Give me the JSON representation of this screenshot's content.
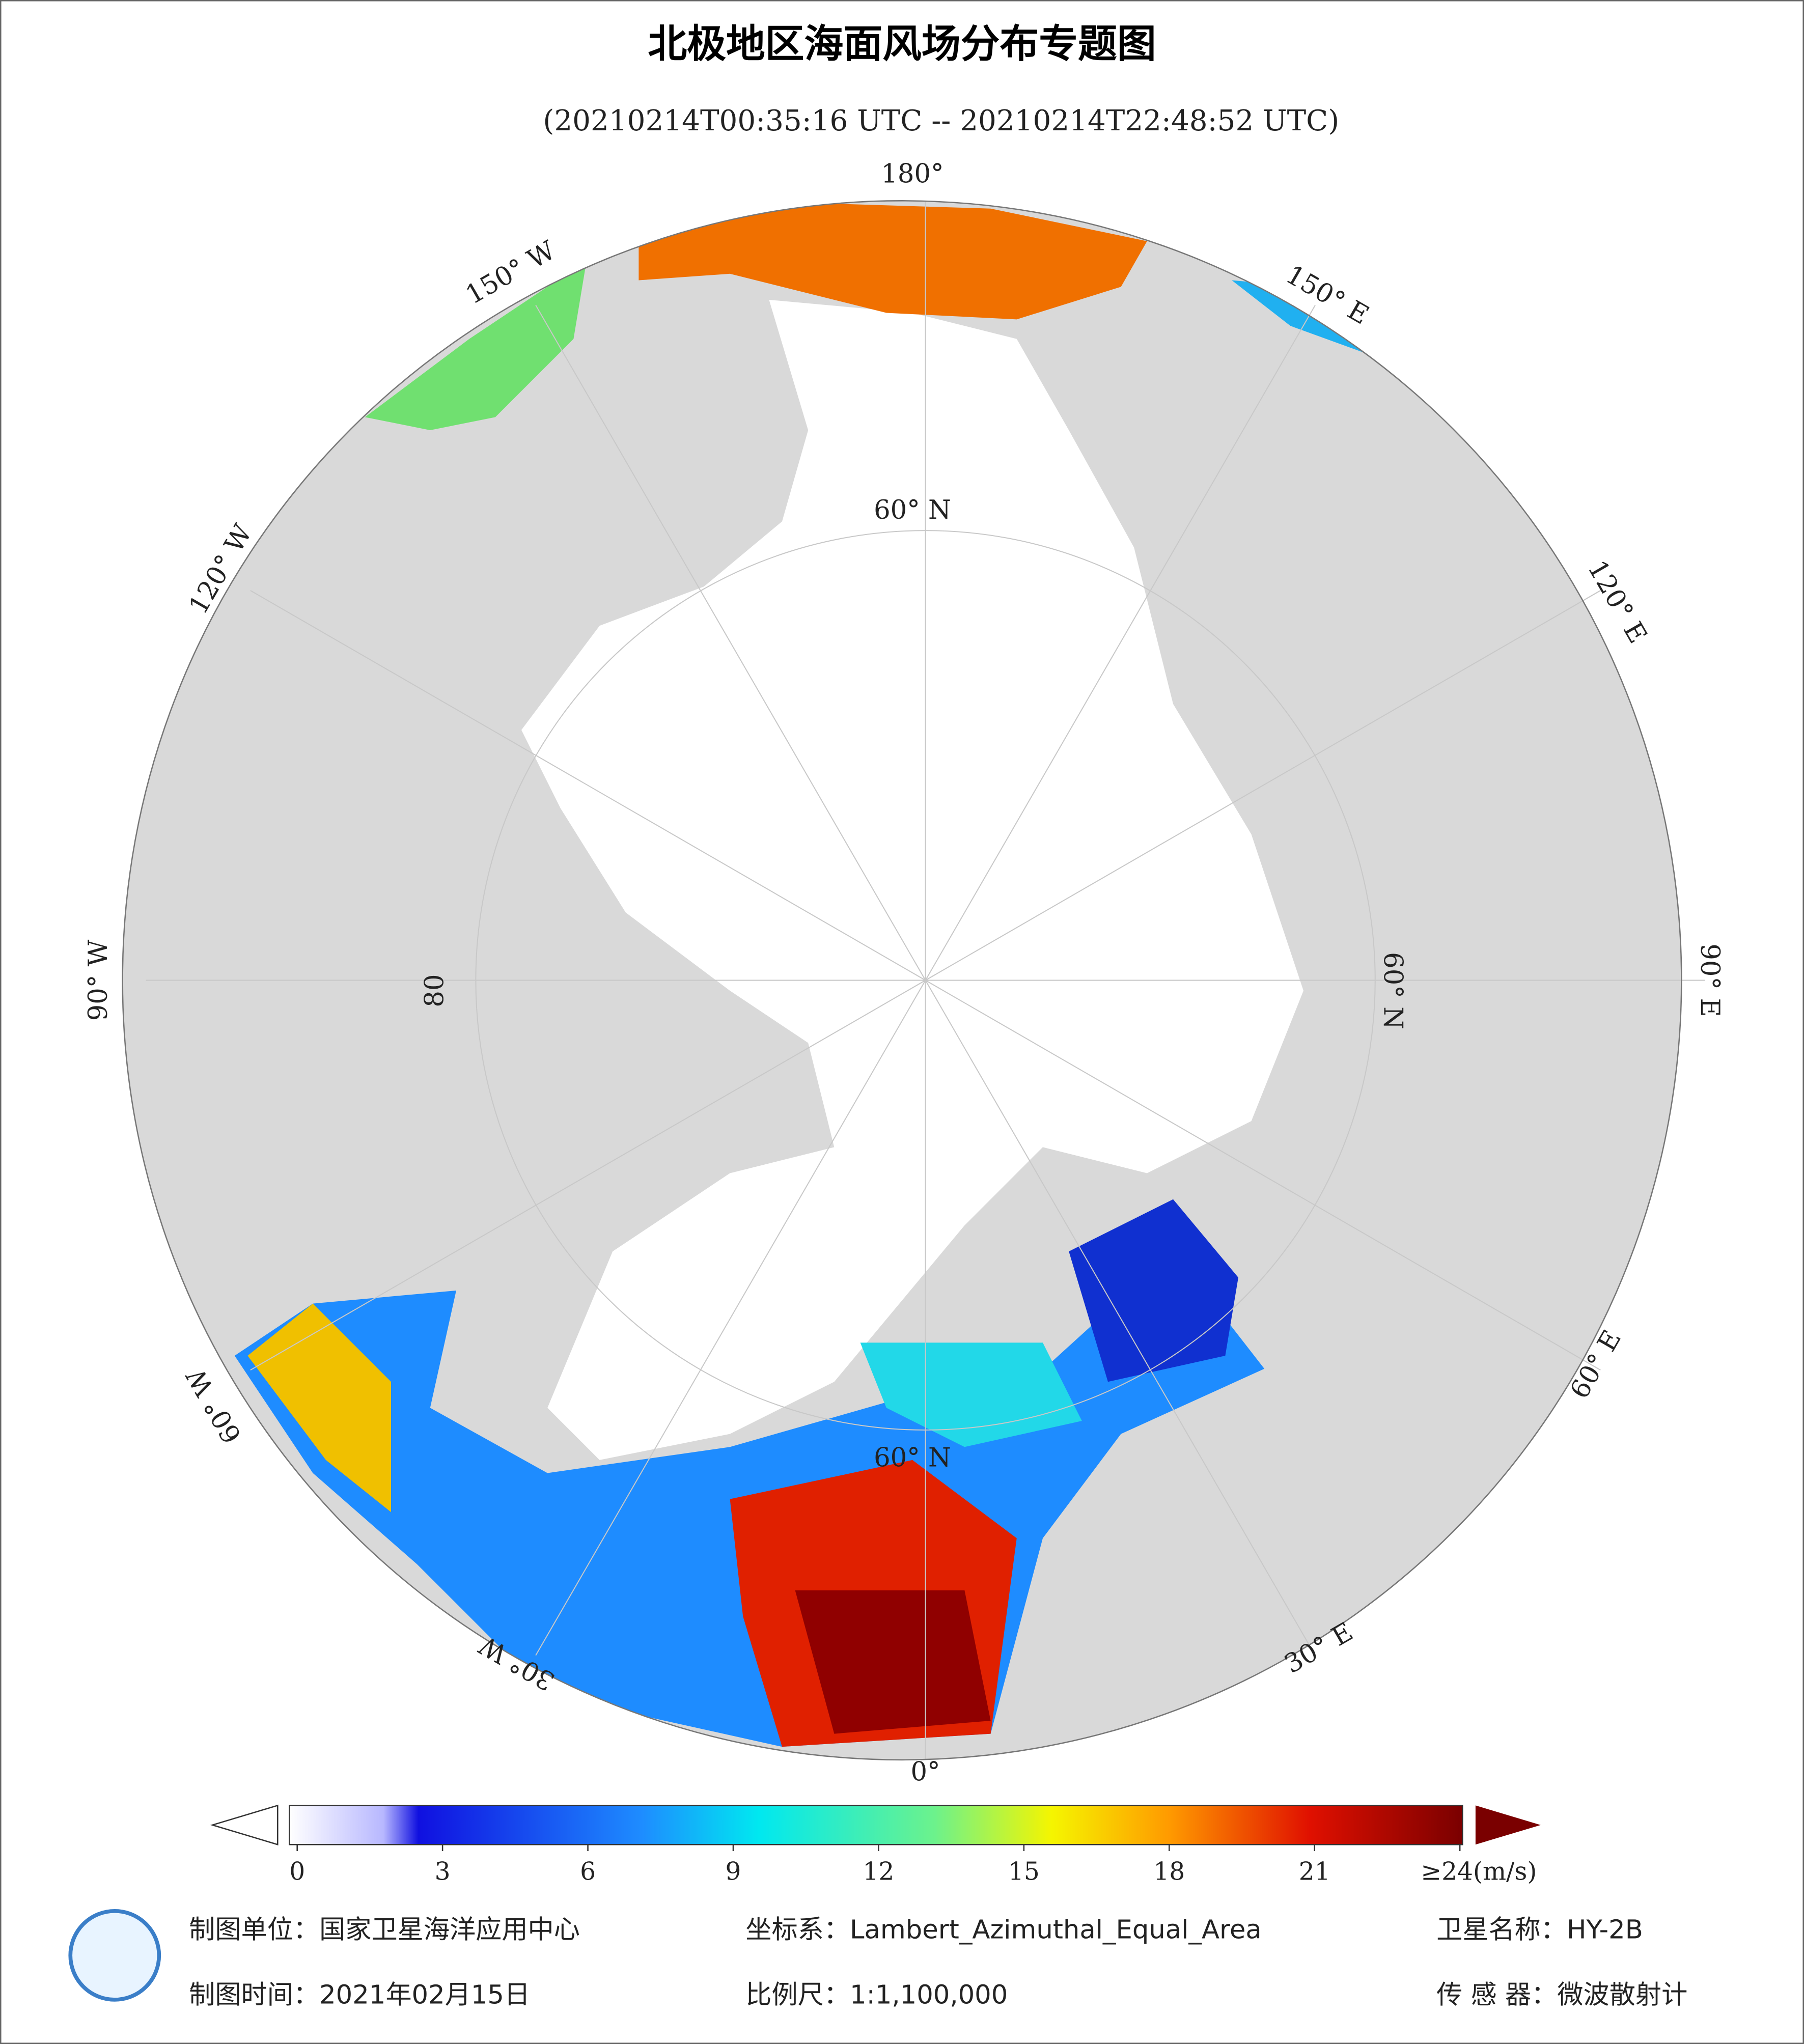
{
  "header": {
    "title": "北极地区海面风场分布专题图",
    "subtitle": "(20210214T00:35:16 UTC -- 20210214T22:48:52 UTC)"
  },
  "graticule": {
    "lon_labels": [
      "180°",
      "150° E",
      "120° E",
      "90° E",
      "60° E",
      "30° E",
      "0°",
      "30° W",
      "60° W",
      "90° W",
      "120° W",
      "150° W"
    ],
    "lat_labels": [
      "60° N",
      "60° N",
      "60° N",
      "80"
    ]
  },
  "colorbar": {
    "range": [
      0,
      24
    ],
    "ticks": [
      0,
      3,
      6,
      9,
      12,
      15,
      18,
      21,
      {
        "value": 24,
        "label": "≥24(m/s)"
      }
    ]
  },
  "footer": {
    "unit": "制图单位：国家卫星海洋应用中心",
    "coords": "坐标系：Lambert_Azimuthal_Equal_Area",
    "satellite": "卫星名称：HY-2B",
    "date": "制图时间：2021年02月15日",
    "scale": "比例尺：1:1,100,000",
    "sensor": "传 感 器：微波散射计"
  }
}
